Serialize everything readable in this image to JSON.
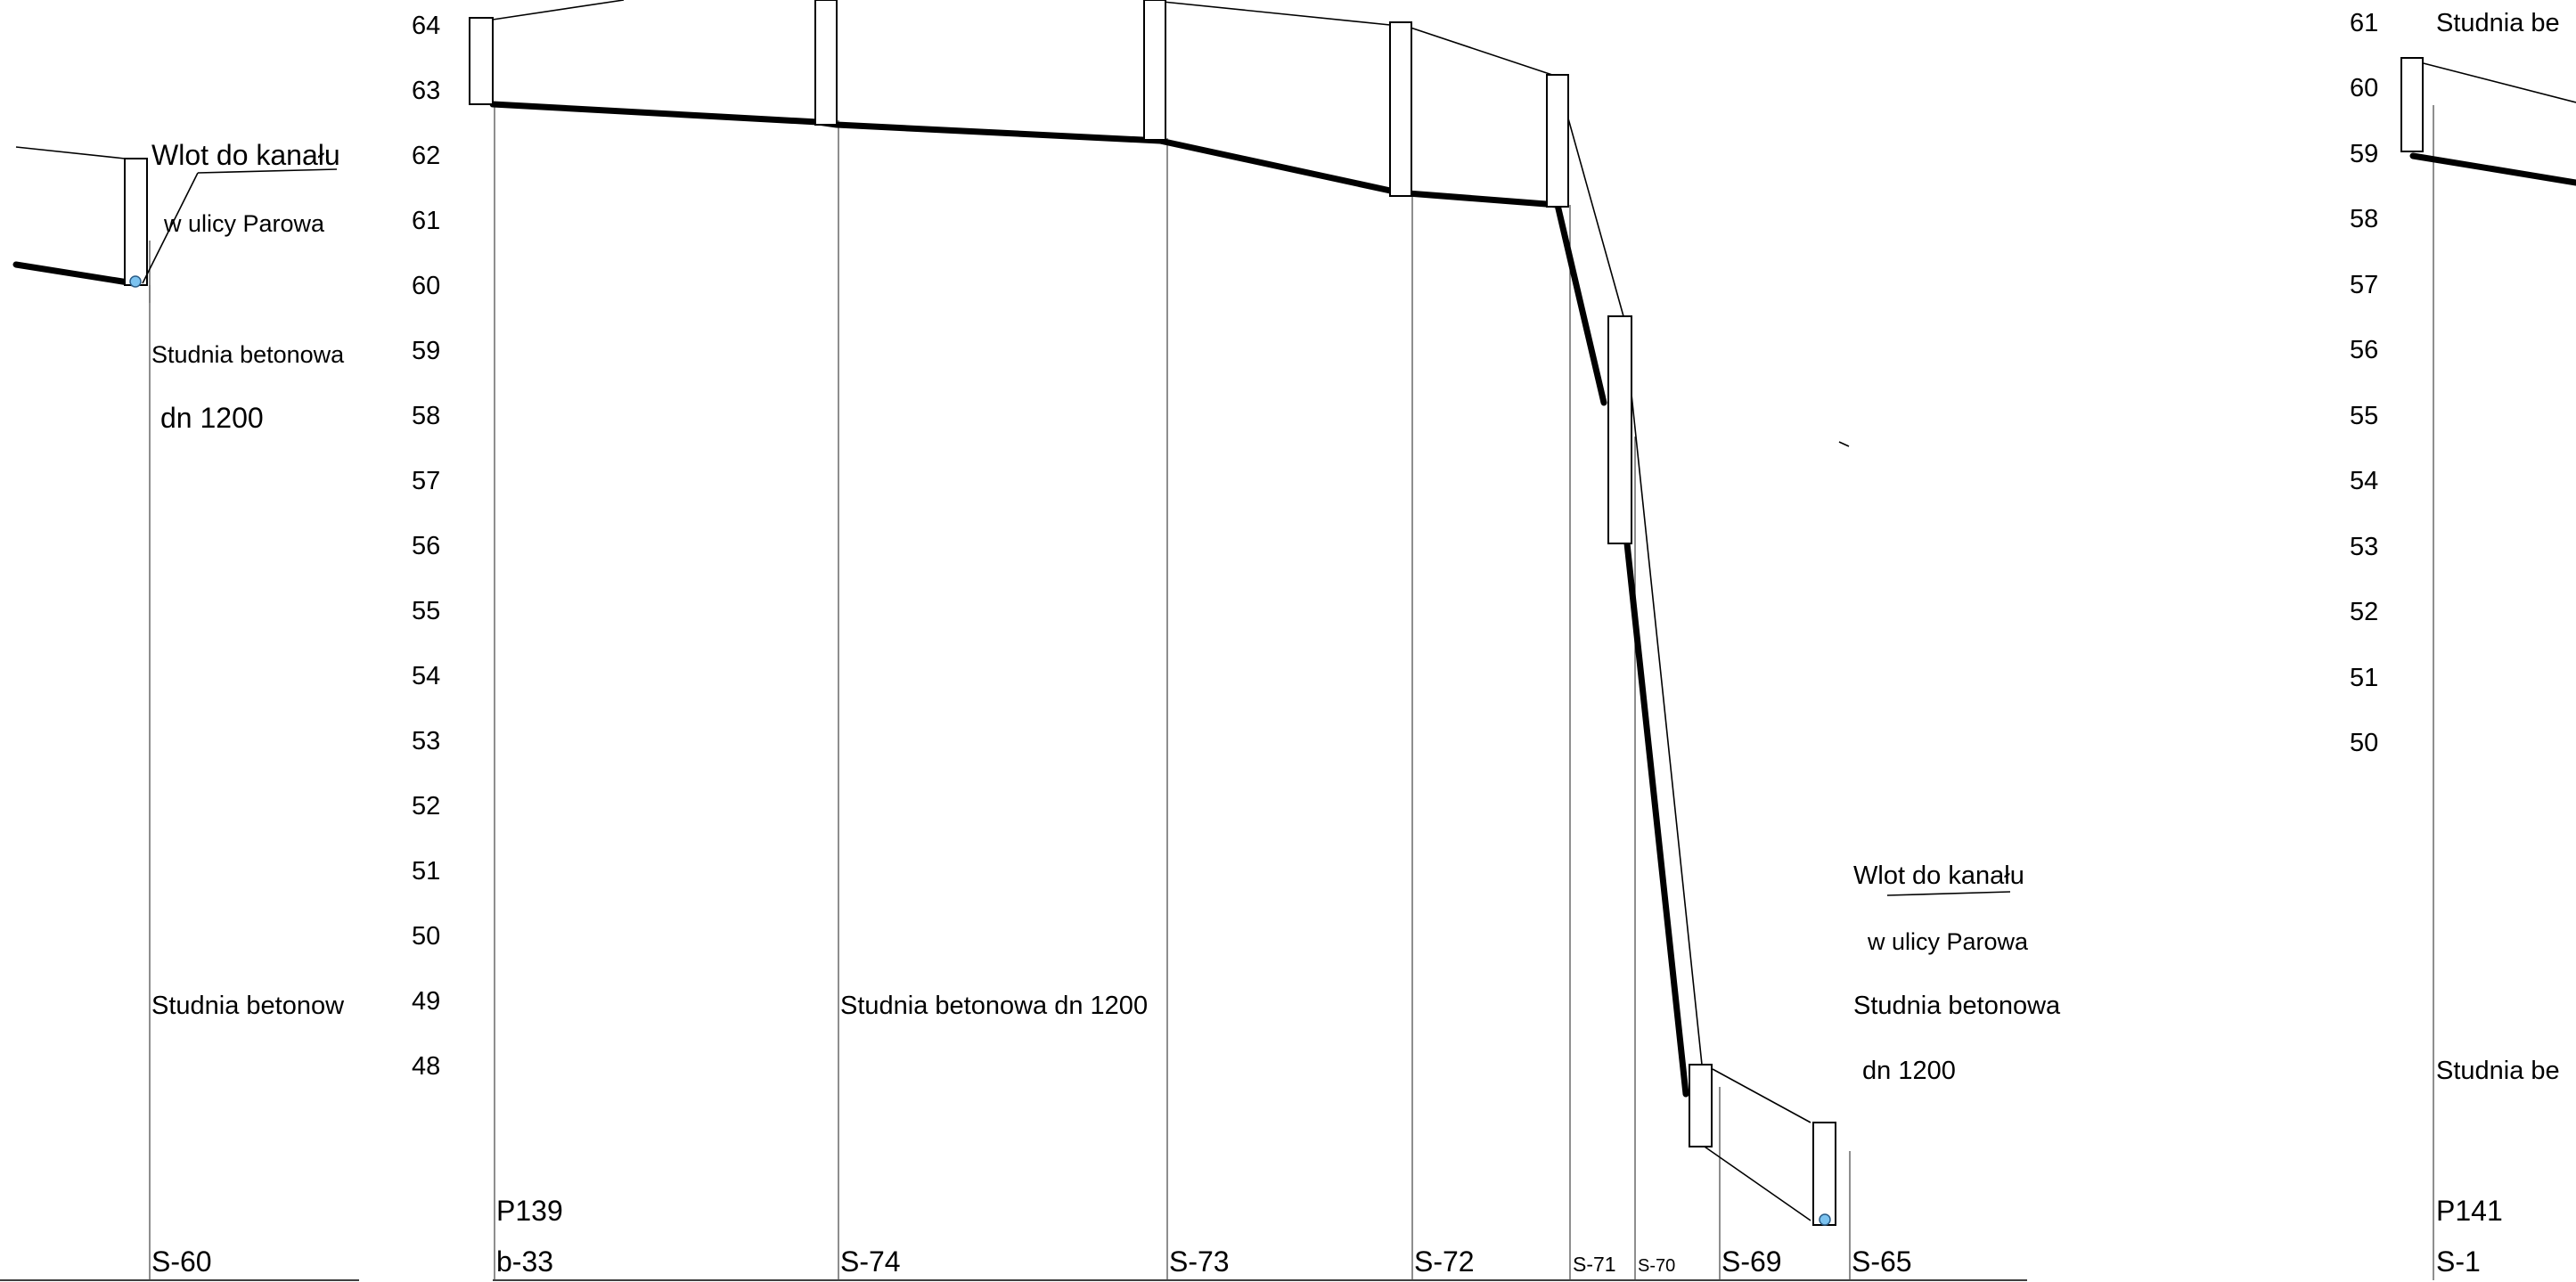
{
  "elevation_axes": {
    "left": [
      "64",
      "63",
      "62",
      "61",
      "60",
      "59",
      "58",
      "57",
      "56",
      "55",
      "54",
      "53",
      "52",
      "51",
      "50",
      "49",
      "48"
    ],
    "right": [
      "61",
      "60",
      "59",
      "58",
      "57",
      "56",
      "55",
      "54",
      "53",
      "52",
      "51",
      "50"
    ]
  },
  "wells": {
    "s60": "S-60",
    "b33": "b-33",
    "s74": "S-74",
    "s73": "S-73",
    "s72": "S-72",
    "s71": "S-71",
    "s70": "S-70",
    "s69": "S-69",
    "s65": "S-65",
    "s1": "S-1"
  },
  "profiles": {
    "p139": "P139",
    "p141": "P141"
  },
  "annotations": {
    "inlet_left_1": "Wlot do  kanału",
    "inlet_left_2": "w  ulicy  Parowa",
    "concrete_left_1": "Studnia betonowa",
    "concrete_left_2": "dn 1200",
    "concrete_left_3": "Studnia betonow",
    "concrete_center": "Studnia betonowa  dn 1200",
    "inlet_right_1": "Wlot do  kanału",
    "inlet_right_2": "w  ulicy  Parowa",
    "concrete_right_1": "Studnia betonowa",
    "concrete_right_2": "dn 1200",
    "concrete_far_1": "Studnia  be",
    "concrete_far_2": "Studnia be"
  }
}
